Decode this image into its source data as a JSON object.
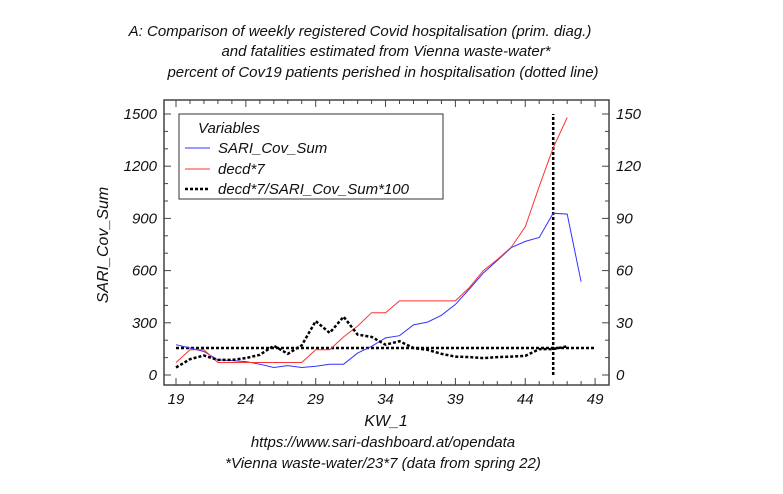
{
  "chart_data": {
    "type": "line",
    "title": [
      "A: Comparison of weekly registered Covid hospitalisation (prim. diag.)",
      "and fatalities estimated from Vienna waste-water*",
      "percent of Cov19 patients perished in hospitalisation (dotted line)"
    ],
    "xlabel": "KW_1",
    "ylabel": "SARI_Cov_Sum",
    "footnotes": [
      "https://www.sari-dashboard.at/opendata",
      "*Vienna waste-water/23*7 (data from spring 22)"
    ],
    "xlim": [
      18.2,
      49.8
    ],
    "ylim": [
      -60,
      1560
    ],
    "y2lim": [
      -6,
      156
    ],
    "xticks": [
      "19",
      "24",
      "29",
      "34",
      "39",
      "44",
      "49"
    ],
    "yticks": [
      "0",
      "300",
      "600",
      "900",
      "1200",
      "1500"
    ],
    "y2ticks": [
      "0",
      "30",
      "60",
      "90",
      "120",
      "150"
    ],
    "grid": false,
    "legend": {
      "title": "Variables",
      "placement": "top-left",
      "entries": [
        "SARI_Cov_Sum",
        "decd*7",
        "decd*7/SARI_Cov_Sum*100"
      ]
    },
    "series": [
      {
        "name": "SARI_Cov_Sum",
        "axis": "left",
        "color": "#3333ff",
        "style": "solid",
        "x": [
          19,
          20,
          21,
          22,
          23,
          24,
          25,
          26,
          27,
          28,
          29,
          30,
          31,
          32,
          33,
          34,
          35,
          36,
          37,
          38,
          39,
          40,
          41,
          42,
          43,
          44,
          45,
          46,
          47,
          48
        ],
        "y": [
          174,
          155,
          135,
          87,
          83,
          77,
          62,
          43,
          54,
          43,
          50,
          62,
          62,
          126,
          165,
          213,
          226,
          288,
          304,
          343,
          406,
          494,
          586,
          658,
          732,
          768,
          790,
          930,
          925,
          536
        ]
      },
      {
        "name": "decd*7",
        "axis": "left",
        "color": "#ff3333",
        "style": "solid",
        "x": [
          19,
          20,
          21,
          22,
          23,
          24,
          25,
          26,
          27,
          28,
          29,
          30,
          31,
          32,
          33,
          34,
          35,
          36,
          37,
          38,
          39,
          40,
          41,
          42,
          43,
          44,
          45,
          46,
          47
        ],
        "y": [
          72,
          145,
          145,
          72,
          72,
          72,
          72,
          72,
          72,
          72,
          145,
          145,
          219,
          281,
          358,
          358,
          426,
          426,
          426,
          426,
          426,
          503,
          600,
          664,
          735,
          852,
          1084,
          1306,
          1480
        ]
      },
      {
        "name": "decd*7/SARI_Cov_Sum*100",
        "axis": "right",
        "color": "#000000",
        "style": "dotted",
        "x": [
          19,
          20,
          21,
          22,
          23,
          24,
          25,
          26,
          27,
          28,
          29,
          30,
          31,
          32,
          33,
          34,
          35,
          36,
          37,
          38,
          39,
          40,
          41,
          42,
          43,
          44,
          45,
          46,
          47
        ],
        "y": [
          4.3,
          9.1,
          11.2,
          8.7,
          8.7,
          9.7,
          11.6,
          16.8,
          12.2,
          17,
          31,
          24.2,
          33.5,
          23.2,
          21.9,
          17.4,
          19.4,
          15.5,
          14.5,
          12.2,
          10.6,
          10.3,
          9.7,
          10.3,
          10.6,
          11,
          14.9,
          14.9,
          16.5
        ]
      }
    ],
    "reference_lines": [
      {
        "orientation": "horizontal",
        "axis": "right",
        "value": 15.5,
        "style": "dotted"
      },
      {
        "orientation": "vertical",
        "value": 46,
        "style": "dotted"
      }
    ]
  }
}
